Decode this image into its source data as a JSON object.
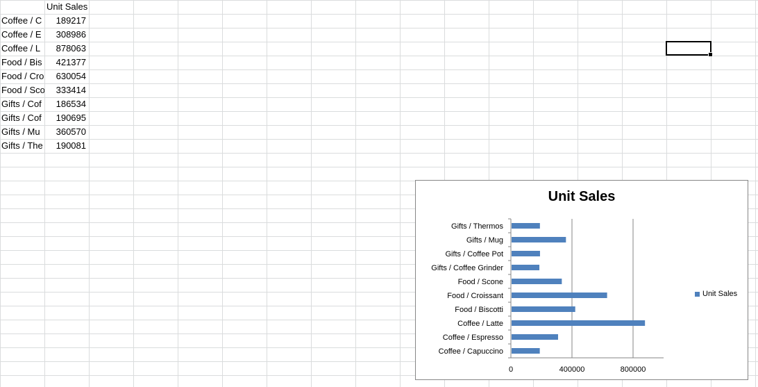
{
  "sheet": {
    "header": "Unit Sales",
    "rows": [
      {
        "label": "Coffee / C",
        "value": "189217"
      },
      {
        "label": "Coffee / E",
        "value": "308986"
      },
      {
        "label": "Coffee / L",
        "value": "878063"
      },
      {
        "label": "Food / Bis",
        "value": "421377"
      },
      {
        "label": "Food / Cro",
        "value": "630054"
      },
      {
        "label": "Food / Sco",
        "value": "333414"
      },
      {
        "label": "Gifts / Cof",
        "value": "186534"
      },
      {
        "label": "Gifts / Cof",
        "value": "190695"
      },
      {
        "label": "Gifts / Mu",
        "value": "360570"
      },
      {
        "label": "Gifts / The",
        "value": "190081"
      }
    ]
  },
  "chart_data": {
    "type": "bar",
    "orientation": "horizontal",
    "title": "Unit Sales",
    "categories": [
      "Coffee / Capuccino",
      "Coffee / Espresso",
      "Coffee / Latte",
      "Food / Biscotti",
      "Food / Croissant",
      "Food / Scone",
      "Gifts / Coffee Grinder",
      "Gifts / Coffee Pot",
      "Gifts / Mug",
      "Gifts / Thermos"
    ],
    "series": [
      {
        "name": "Unit Sales",
        "values": [
          189217,
          308986,
          878063,
          421377,
          630054,
          333414,
          186534,
          190695,
          360570,
          190081
        ],
        "color": "#4f81bd"
      }
    ],
    "xlim": [
      0,
      1000000
    ],
    "xticks": [
      "0",
      "400000",
      "800000"
    ],
    "xtick_values": [
      0,
      400000,
      800000
    ],
    "grid": true,
    "legend": "right"
  }
}
